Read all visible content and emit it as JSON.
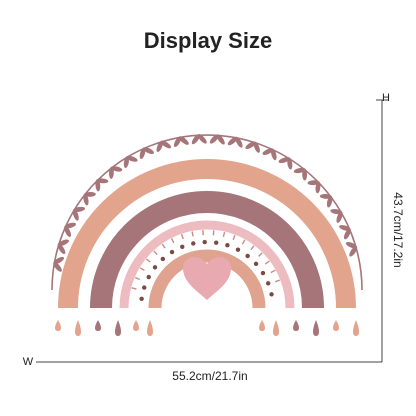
{
  "header": {
    "title": "Display Size"
  },
  "dimensions": {
    "width_letter": "W",
    "width_label": "55.2cm/21.7in",
    "height_letter": "H",
    "height_label": "43.7cm/17.2in"
  }
}
